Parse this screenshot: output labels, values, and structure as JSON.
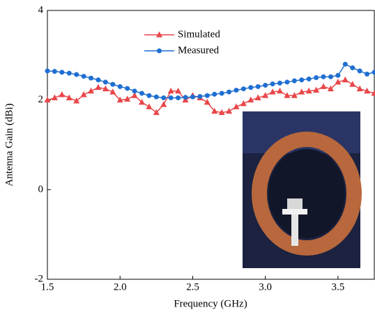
{
  "chart_data": {
    "type": "line",
    "xlabel": "Frequency (GHz)",
    "ylabel": "Antenna Gain (dBi)",
    "x": [
      1.5,
      1.55,
      1.6,
      1.65,
      1.7,
      1.75,
      1.8,
      1.85,
      1.9,
      1.95,
      2.0,
      2.05,
      2.1,
      2.15,
      2.2,
      2.25,
      2.3,
      2.35,
      2.4,
      2.45,
      2.5,
      2.55,
      2.6,
      2.65,
      2.7,
      2.75,
      2.8,
      2.85,
      2.9,
      2.95,
      3.0,
      3.05,
      3.1,
      3.15,
      3.2,
      3.25,
      3.3,
      3.35,
      3.4,
      3.45,
      3.5,
      3.55,
      3.6,
      3.65,
      3.7,
      3.75
    ],
    "series": [
      {
        "name": "Simulated",
        "color": "#e8474a",
        "marker": "triangle",
        "values": [
          2.0,
          2.05,
          2.12,
          2.05,
          1.98,
          2.12,
          2.2,
          2.28,
          2.25,
          2.18,
          2.0,
          2.02,
          2.1,
          1.95,
          1.85,
          1.72,
          1.9,
          2.2,
          2.2,
          2.0,
          2.1,
          2.05,
          1.95,
          1.75,
          1.72,
          1.75,
          1.85,
          1.92,
          2.0,
          2.05,
          2.1,
          2.18,
          2.2,
          2.1,
          2.1,
          2.18,
          2.2,
          2.22,
          2.3,
          2.25,
          2.4,
          2.45,
          2.35,
          2.25,
          2.2,
          2.15
        ]
      },
      {
        "name": "Measured",
        "color": "#1f6fd1",
        "marker": "circle",
        "values": [
          2.65,
          2.64,
          2.62,
          2.6,
          2.57,
          2.53,
          2.49,
          2.45,
          2.4,
          2.35,
          2.3,
          2.26,
          2.2,
          2.15,
          2.1,
          2.07,
          2.05,
          2.05,
          2.05,
          2.06,
          2.07,
          2.08,
          2.1,
          2.13,
          2.15,
          2.18,
          2.22,
          2.25,
          2.28,
          2.3,
          2.33,
          2.36,
          2.38,
          2.4,
          2.43,
          2.45,
          2.47,
          2.5,
          2.52,
          2.52,
          2.55,
          2.8,
          2.72,
          2.65,
          2.58,
          2.62
        ]
      }
    ],
    "xlim": [
      1.5,
      3.75
    ],
    "xticks": [
      1.5,
      {
        "value": 2,
        "label": "2.0"
      },
      2.5,
      {
        "value": 3,
        "label": "3.0"
      },
      3.5
    ],
    "ylim": [
      -2,
      4
    ],
    "yticks": [
      -2,
      0,
      2,
      4
    ]
  }
}
